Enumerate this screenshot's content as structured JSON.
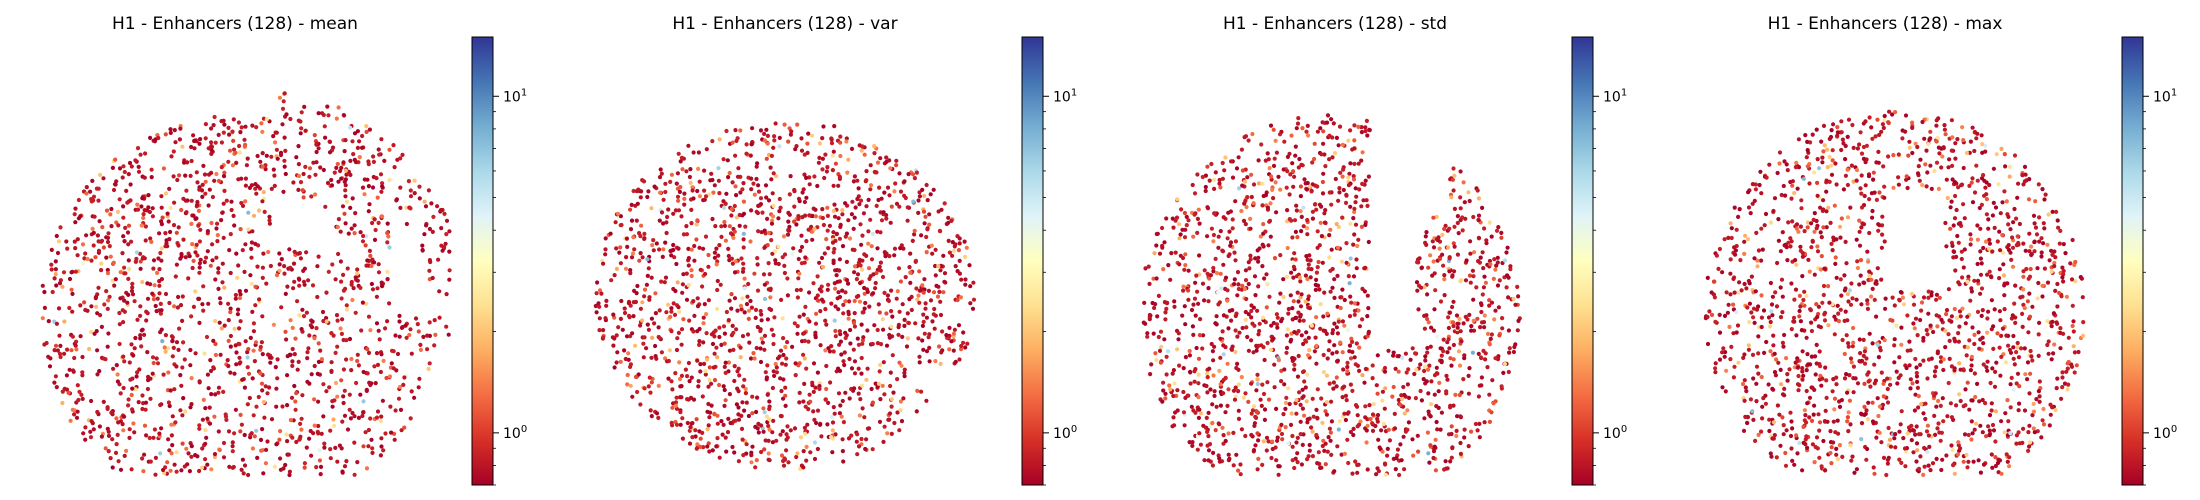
{
  "figure": {
    "panels": [
      {
        "title": "H1 - Enhancers (128) - mean",
        "colorbar_ticks": [
          "10",
          "10"
        ],
        "colorbar_tick_exps": [
          "1",
          "0"
        ]
      },
      {
        "title": "H1 - Enhancers (128) - var",
        "colorbar_ticks": [
          "10",
          "10"
        ],
        "colorbar_tick_exps": [
          "1",
          "0"
        ]
      },
      {
        "title": "H1 - Enhancers (128) - std",
        "colorbar_ticks": [
          "10",
          "10"
        ],
        "colorbar_tick_exps": [
          "1",
          "0"
        ]
      },
      {
        "title": "H1 - Enhancers (128) - max",
        "colorbar_ticks": [
          "10",
          "10"
        ],
        "colorbar_tick_exps": [
          "1",
          "0"
        ]
      }
    ]
  },
  "chart_data": [
    {
      "type": "scatter",
      "title": "H1 - Enhancers (128) - mean",
      "xlabel": "",
      "ylabel": "",
      "axes_visible": false,
      "colormap": "RdYlBu",
      "colorbar": {
        "scale": "log",
        "range": [
          0.7,
          15
        ],
        "ticks": [
          1,
          10
        ],
        "tick_labels": [
          "10^0",
          "10^1"
        ]
      },
      "color_value_distribution": {
        "dominant": 0.75,
        "frequent_highlight": [
          1.5,
          3
        ]
      }
    },
    {
      "type": "scatter",
      "title": "H1 - Enhancers (128) - var",
      "xlabel": "",
      "ylabel": "",
      "axes_visible": false,
      "colormap": "RdYlBu",
      "colorbar": {
        "scale": "log",
        "range": [
          0.7,
          15
        ],
        "ticks": [
          1,
          10
        ],
        "tick_labels": [
          "10^0",
          "10^1"
        ]
      },
      "color_value_distribution": {
        "dominant": 0.75,
        "frequent_highlight": [
          1.5,
          3
        ]
      }
    },
    {
      "type": "scatter",
      "title": "H1 - Enhancers (128) - std",
      "xlabel": "",
      "ylabel": "",
      "axes_visible": false,
      "colormap": "RdYlBu",
      "colorbar": {
        "scale": "log",
        "range": [
          0.7,
          15
        ],
        "ticks": [
          1,
          10
        ],
        "tick_labels": [
          "10^0",
          "10^1"
        ]
      },
      "color_value_distribution": {
        "dominant": 0.75,
        "frequent_highlight": [
          1.5,
          3
        ]
      }
    },
    {
      "type": "scatter",
      "title": "H1 - Enhancers (128) - max",
      "xlabel": "",
      "ylabel": "",
      "axes_visible": false,
      "colormap": "RdYlBu",
      "colorbar": {
        "scale": "log",
        "range": [
          0.7,
          15
        ],
        "ticks": [
          1,
          10
        ],
        "tick_labels": [
          "10^0",
          "10^1"
        ]
      },
      "color_value_distribution": {
        "dominant": 0.75,
        "frequent_highlight": [
          1.5,
          3
        ]
      }
    }
  ],
  "colors": {
    "colormap_stops": [
      "#a50026",
      "#d73027",
      "#f46d43",
      "#fdae61",
      "#fee090",
      "#ffffbf",
      "#e0f3f8",
      "#abd9e9",
      "#74add1",
      "#4575b4",
      "#313695"
    ],
    "background": "#ffffff",
    "text": "#000000"
  }
}
